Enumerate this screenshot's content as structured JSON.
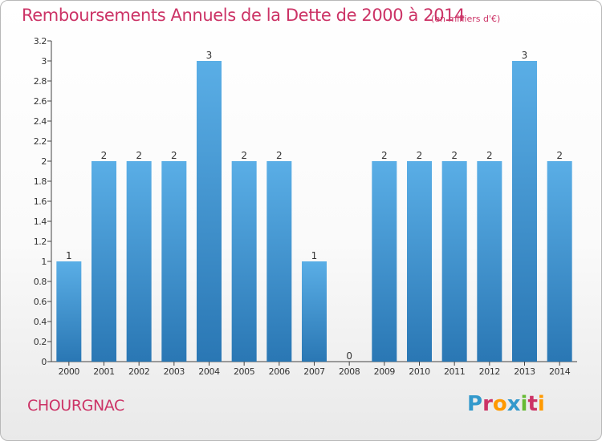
{
  "title": "Remboursements Annuels de la Dette de 2000 à 2014",
  "unit_note": "(en milliers d'€)",
  "commune": "CHOURGNAC",
  "logo": {
    "text": "Proxiti",
    "letters": [
      "P",
      "r",
      "o",
      "x",
      "i",
      "t",
      "i"
    ],
    "colors": [
      "#3399cc",
      "#cc3366",
      "#ff9900",
      "#3399cc",
      "#66bb33",
      "#cc3366",
      "#ff9900"
    ]
  },
  "colors": {
    "accent": "#cc3366",
    "bar_light": "#5aaee6",
    "bar_dark": "#2a77b4",
    "axis": "#444444"
  },
  "chart_data": {
    "type": "bar",
    "title": "Remboursements Annuels de la Dette de 2000 à 2014",
    "xlabel": "",
    "ylabel": "",
    "ylim": [
      0,
      3.2
    ],
    "grid": false,
    "categories": [
      "2000",
      "2001",
      "2002",
      "2003",
      "2004",
      "2005",
      "2006",
      "2007",
      "2008",
      "2009",
      "2010",
      "2011",
      "2012",
      "2013",
      "2014"
    ],
    "values": [
      1,
      2,
      2,
      2,
      3,
      2,
      2,
      1,
      0,
      2,
      2,
      2,
      2,
      3,
      2
    ],
    "value_labels": [
      "1",
      "2",
      "2",
      "2",
      "3",
      "2",
      "2",
      "1",
      "0",
      "2",
      "2",
      "2",
      "2",
      "3",
      "2"
    ],
    "y_ticks": [
      0,
      0.2,
      0.4,
      0.6,
      0.8,
      1,
      1.2,
      1.4,
      1.6,
      1.8,
      2,
      2.2,
      2.4,
      2.6,
      2.8,
      3,
      3.2
    ],
    "y_tick_labels": [
      "0",
      "0.2",
      "0.4",
      "0.6",
      "0.8",
      "1",
      "1.2",
      "1.4",
      "1.6",
      "1.8",
      "2",
      "2.2",
      "2.4",
      "2.6",
      "2.8",
      "3",
      "3.2"
    ]
  }
}
